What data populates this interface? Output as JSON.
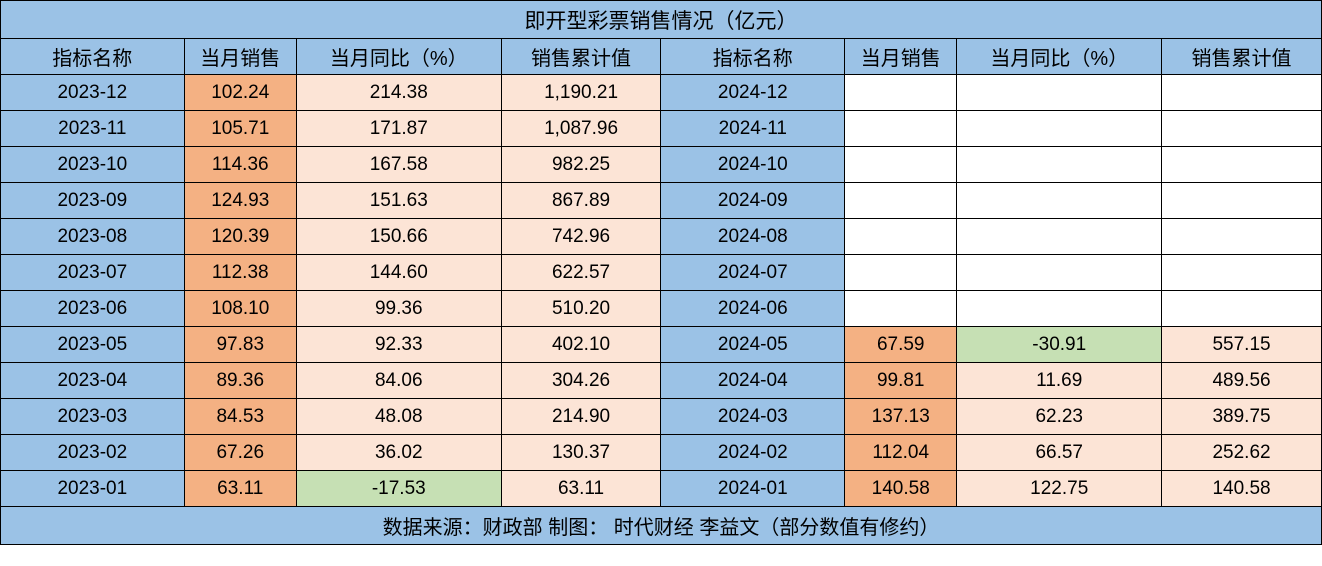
{
  "table": {
    "title": "即开型彩票销售情况（亿元）",
    "footer": "数据来源：财政部  制图： 时代财经 李益文（部分数值有修约）",
    "headers": {
      "name": "指标名称",
      "sales": "当月销售",
      "yoy": "当月同比（%）",
      "cumulative": "销售累计值"
    },
    "colors": {
      "blue": "#9bc2e6",
      "orange_dark": "#f4b183",
      "orange_light": "#fce4d6",
      "green": "#c6e0b4",
      "white": "#ffffff",
      "border": "#000000"
    },
    "col_widths": {
      "name": "13.9%",
      "sales": "8.5%",
      "yoy": "15.5%",
      "cumulative": "12.1%"
    },
    "rows": [
      {
        "left": {
          "period": "2023-12",
          "sales": "102.24",
          "yoy": "214.38",
          "yoy_color": "orange-light",
          "cum": "1,190.21"
        },
        "right": {
          "period": "2024-12",
          "sales": "",
          "yoy": "",
          "yoy_color": "white",
          "cum": "",
          "empty": true
        }
      },
      {
        "left": {
          "period": "2023-11",
          "sales": "105.71",
          "yoy": "171.87",
          "yoy_color": "orange-light",
          "cum": "1,087.96"
        },
        "right": {
          "period": "2024-11",
          "sales": "",
          "yoy": "",
          "yoy_color": "white",
          "cum": "",
          "empty": true
        }
      },
      {
        "left": {
          "period": "2023-10",
          "sales": "114.36",
          "yoy": "167.58",
          "yoy_color": "orange-light",
          "cum": "982.25"
        },
        "right": {
          "period": "2024-10",
          "sales": "",
          "yoy": "",
          "yoy_color": "white",
          "cum": "",
          "empty": true
        }
      },
      {
        "left": {
          "period": "2023-09",
          "sales": "124.93",
          "yoy": "151.63",
          "yoy_color": "orange-light",
          "cum": "867.89"
        },
        "right": {
          "period": "2024-09",
          "sales": "",
          "yoy": "",
          "yoy_color": "white",
          "cum": "",
          "empty": true
        }
      },
      {
        "left": {
          "period": "2023-08",
          "sales": "120.39",
          "yoy": "150.66",
          "yoy_color": "orange-light",
          "cum": "742.96"
        },
        "right": {
          "period": "2024-08",
          "sales": "",
          "yoy": "",
          "yoy_color": "white",
          "cum": "",
          "empty": true
        }
      },
      {
        "left": {
          "period": "2023-07",
          "sales": "112.38",
          "yoy": "144.60",
          "yoy_color": "orange-light",
          "cum": "622.57"
        },
        "right": {
          "period": "2024-07",
          "sales": "",
          "yoy": "",
          "yoy_color": "white",
          "cum": "",
          "empty": true
        }
      },
      {
        "left": {
          "period": "2023-06",
          "sales": "108.10",
          "yoy": "99.36",
          "yoy_color": "orange-light",
          "cum": "510.20"
        },
        "right": {
          "period": "2024-06",
          "sales": "",
          "yoy": "",
          "yoy_color": "white",
          "cum": "",
          "empty": true
        }
      },
      {
        "left": {
          "period": "2023-05",
          "sales": "97.83",
          "yoy": "92.33",
          "yoy_color": "orange-light",
          "cum": "402.10"
        },
        "right": {
          "period": "2024-05",
          "sales": "67.59",
          "yoy": "-30.91",
          "yoy_color": "green",
          "cum": "557.15",
          "empty": false
        }
      },
      {
        "left": {
          "period": "2023-04",
          "sales": "89.36",
          "yoy": "84.06",
          "yoy_color": "orange-light",
          "cum": "304.26"
        },
        "right": {
          "period": "2024-04",
          "sales": "99.81",
          "yoy": "11.69",
          "yoy_color": "orange-light",
          "cum": "489.56",
          "empty": false
        }
      },
      {
        "left": {
          "period": "2023-03",
          "sales": "84.53",
          "yoy": "48.08",
          "yoy_color": "orange-light",
          "cum": "214.90"
        },
        "right": {
          "period": "2024-03",
          "sales": "137.13",
          "yoy": "62.23",
          "yoy_color": "orange-light",
          "cum": "389.75",
          "empty": false
        }
      },
      {
        "left": {
          "period": "2023-02",
          "sales": "67.26",
          "yoy": "36.02",
          "yoy_color": "orange-light",
          "cum": "130.37"
        },
        "right": {
          "period": "2024-02",
          "sales": "112.04",
          "yoy": "66.57",
          "yoy_color": "orange-light",
          "cum": "252.62",
          "empty": false
        }
      },
      {
        "left": {
          "period": "2023-01",
          "sales": "63.11",
          "yoy": "-17.53",
          "yoy_color": "green",
          "cum": "63.11"
        },
        "right": {
          "period": "2024-01",
          "sales": "140.58",
          "yoy": "122.75",
          "yoy_color": "orange-light",
          "cum": "140.58",
          "empty": false
        }
      }
    ]
  }
}
